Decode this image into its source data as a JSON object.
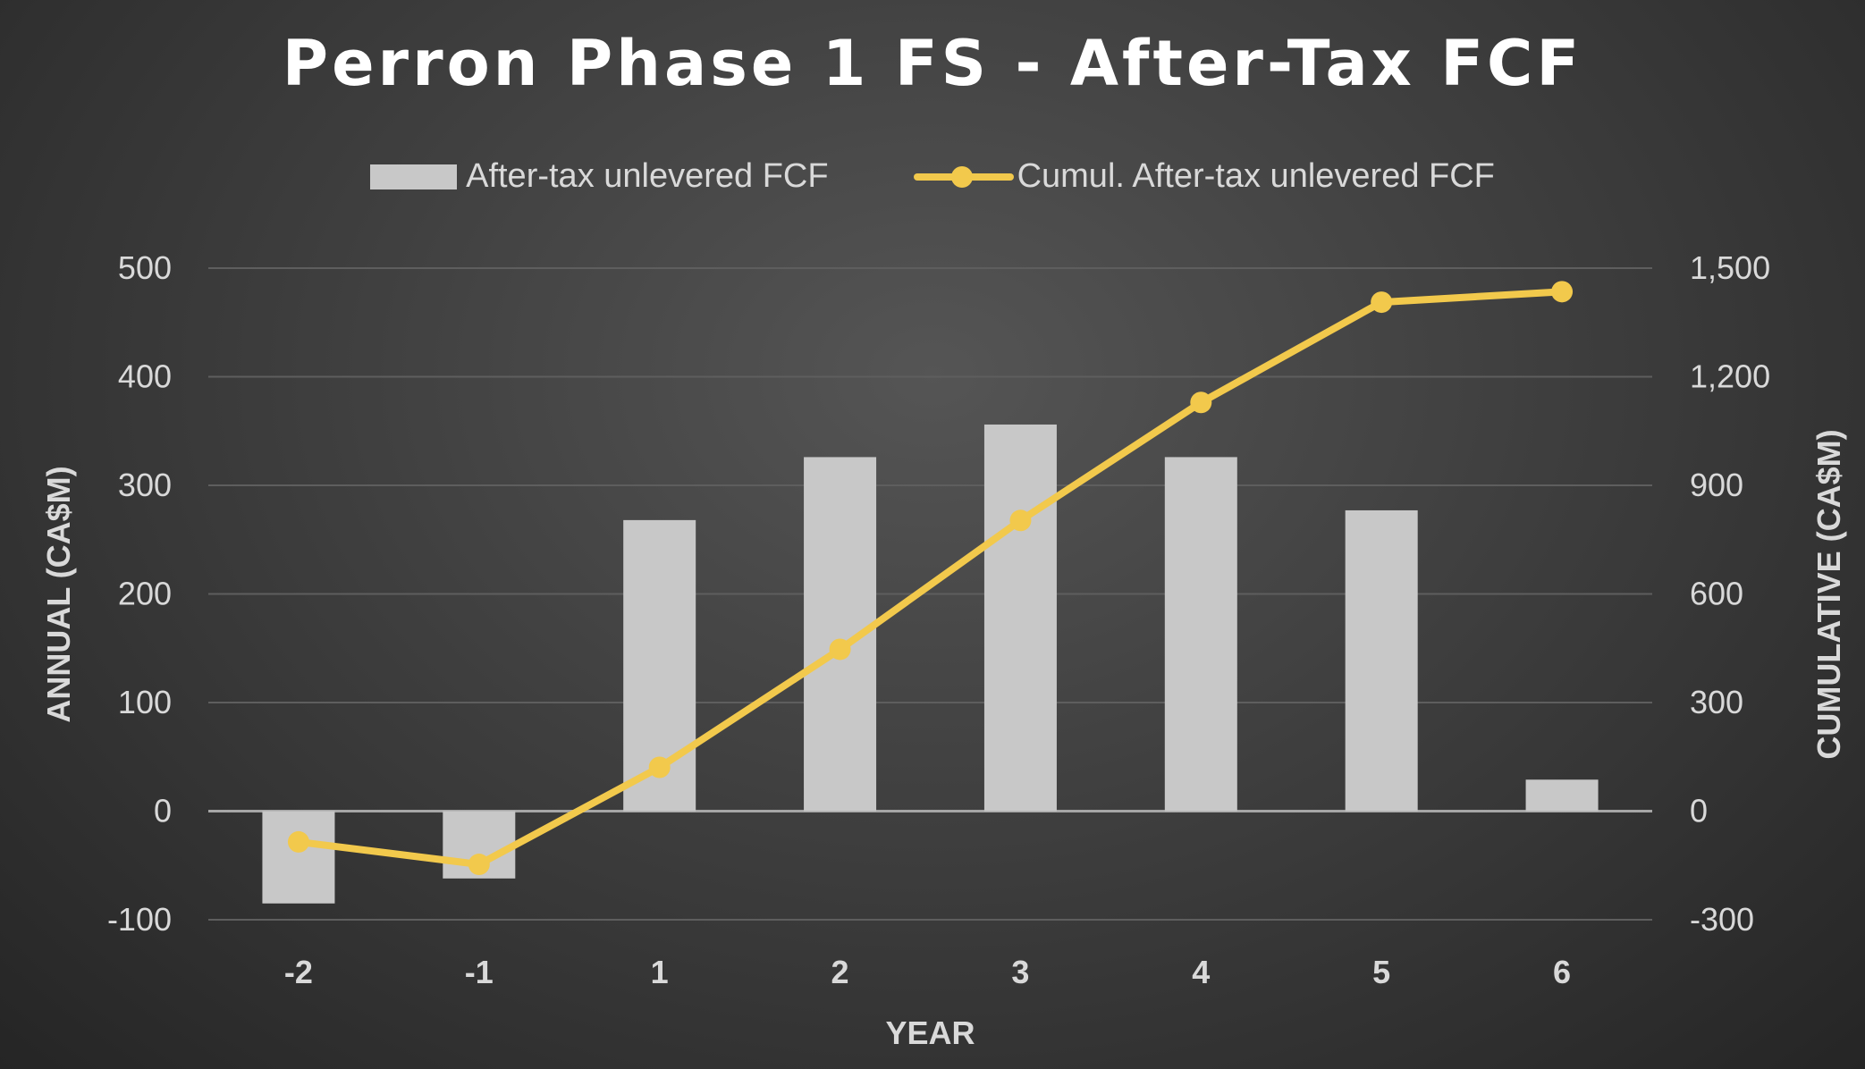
{
  "chart_data": {
    "type": "bar",
    "title": "Perron Phase 1 FS - After-Tax FCF",
    "xlabel": "YEAR",
    "ylabel": "ANNUAL (CA$M)",
    "y2label": "CUMULATIVE (CA$M)",
    "categories": [
      "-2",
      "-1",
      "1",
      "2",
      "3",
      "4",
      "5",
      "6"
    ],
    "ylim": [
      -100,
      500
    ],
    "y2lim": [
      -300,
      1500
    ],
    "yticks": [
      "-100",
      "0",
      "100",
      "200",
      "300",
      "400",
      "500"
    ],
    "y2ticks": [
      "-300",
      "0",
      "300",
      "600",
      "900",
      "1,200",
      "1,500"
    ],
    "legend_position": "top-center",
    "grid": true,
    "series": [
      {
        "name": "After-tax unlevered FCF",
        "type": "bar",
        "axis": "left",
        "color": "#c8c8c8",
        "values": [
          -85,
          -62,
          268,
          326,
          356,
          326,
          277,
          29
        ]
      },
      {
        "name": "Cumul. After-tax unlevered FCF",
        "type": "line",
        "axis": "right",
        "color": "#f2c94c",
        "values": [
          -85,
          -147,
          121,
          447,
          803,
          1129,
          1406,
          1435
        ]
      }
    ]
  }
}
